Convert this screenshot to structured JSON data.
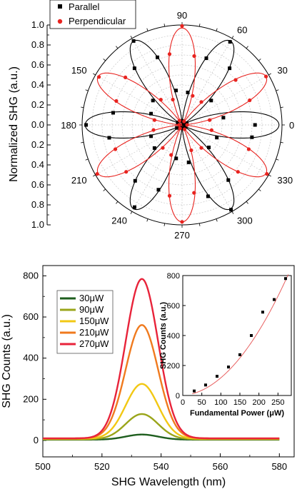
{
  "chart_data": [
    {
      "type": "scatter",
      "subtype": "polar",
      "ylabel": "Normalized SHG (a.u.)",
      "angle_ticks": [
        "0",
        "30",
        "60",
        "90",
        "120",
        "150",
        "180",
        "210",
        "240",
        "270",
        "300",
        "330"
      ],
      "radial_ticks": [
        "0.0",
        "0.2",
        "0.4",
        "0.6",
        "0.8",
        "1.0"
      ],
      "rlim": [
        0,
        1.0
      ],
      "grid": true,
      "legend_position": "top-left",
      "colors": {
        "parallel": "#000000",
        "perpendicular": "#e8231f"
      },
      "series": [
        {
          "name": "Parallel",
          "marker": "square",
          "fit": "cos^2(3θ)",
          "points": [
            [
              0,
              0.73
            ],
            [
              10,
              0.42
            ],
            [
              20,
              0.05
            ],
            [
              30,
              0.02
            ],
            [
              40,
              0.38
            ],
            [
              50,
              0.74
            ],
            [
              60,
              0.96
            ],
            [
              70,
              0.71
            ],
            [
              80,
              0.33
            ],
            [
              90,
              0.04
            ],
            [
              100,
              0.35
            ],
            [
              110,
              0.72
            ],
            [
              120,
              0.97
            ],
            [
              130,
              0.74
            ],
            [
              140,
              0.38
            ],
            [
              150,
              0.05
            ],
            [
              160,
              0.33
            ],
            [
              170,
              0.7
            ],
            [
              180,
              0.96
            ],
            [
              190,
              0.74
            ],
            [
              200,
              0.33
            ],
            [
              210,
              0.06
            ],
            [
              220,
              0.36
            ],
            [
              230,
              0.73
            ],
            [
              240,
              0.95
            ],
            [
              250,
              0.69
            ],
            [
              260,
              0.34
            ],
            [
              270,
              0.03
            ],
            [
              280,
              0.38
            ],
            [
              290,
              0.76
            ],
            [
              300,
              0.98
            ],
            [
              310,
              0.72
            ],
            [
              320,
              0.35
            ],
            [
              330,
              0.04
            ],
            [
              340,
              0.37
            ],
            [
              350,
              0.71
            ]
          ]
        },
        {
          "name": "Perpendicular",
          "marker": "circle",
          "fit": "sin^2(3θ)",
          "points": [
            [
              0,
              0.05
            ],
            [
              10,
              0.28
            ],
            [
              20,
              0.72
            ],
            [
              30,
              0.97
            ],
            [
              40,
              0.7
            ],
            [
              50,
              0.3
            ],
            [
              60,
              0.04
            ],
            [
              70,
              0.31
            ],
            [
              80,
              0.7
            ],
            [
              90,
              0.99
            ],
            [
              100,
              0.72
            ],
            [
              110,
              0.27
            ],
            [
              120,
              0.05
            ],
            [
              130,
              0.33
            ],
            [
              140,
              0.74
            ],
            [
              150,
              0.96
            ],
            [
              160,
              0.7
            ],
            [
              170,
              0.28
            ],
            [
              180,
              0.03
            ],
            [
              190,
              0.29
            ],
            [
              200,
              0.71
            ],
            [
              210,
              0.98
            ],
            [
              220,
              0.73
            ],
            [
              230,
              0.3
            ],
            [
              240,
              0.04
            ],
            [
              250,
              0.32
            ],
            [
              260,
              0.72
            ],
            [
              270,
              0.97
            ],
            [
              280,
              0.69
            ],
            [
              290,
              0.27
            ],
            [
              300,
              0.05
            ],
            [
              310,
              0.3
            ],
            [
              320,
              0.73
            ],
            [
              330,
              0.98
            ],
            [
              340,
              0.71
            ],
            [
              350,
              0.3
            ]
          ]
        }
      ]
    },
    {
      "type": "line",
      "xlabel": "SHG Wavelength (nm)",
      "ylabel": "SHG Counts (a.u.)",
      "xlim": [
        500,
        585
      ],
      "ylim": [
        -80,
        850
      ],
      "xticks": [
        "500",
        "520",
        "540",
        "560",
        "580"
      ],
      "yticks": [
        "0",
        "200",
        "400",
        "600",
        "800"
      ],
      "legend_position": "upper-left",
      "peak_center_nm": 533.5,
      "peak_sigma_nm": 5.5,
      "baseline": 10,
      "series": [
        {
          "name": "30μW",
          "peak": 30,
          "color": "#1e5e1e"
        },
        {
          "name": "90μW",
          "peak": 128,
          "color": "#9aa51a"
        },
        {
          "name": "150μW",
          "peak": 272,
          "color": "#f2c814"
        },
        {
          "name": "210μW",
          "peak": 556,
          "color": "#f07a1e"
        },
        {
          "name": "270μW",
          "peak": 780,
          "color": "#e8233a"
        }
      ]
    },
    {
      "type": "scatter",
      "role": "inset",
      "xlabel": "Fundamental Power (μW)",
      "ylabel": "SHG Counts (a.u.)",
      "xlim": [
        0,
        285
      ],
      "ylim": [
        0,
        800
      ],
      "xticks": [
        "0",
        "50",
        "100",
        "150",
        "200",
        "250"
      ],
      "yticks": [
        "0",
        "200",
        "400",
        "600",
        "800"
      ],
      "fit": "quadratic",
      "fit_color": "#e86060",
      "points": [
        [
          30,
          30
        ],
        [
          60,
          70
        ],
        [
          90,
          128
        ],
        [
          120,
          190
        ],
        [
          150,
          272
        ],
        [
          180,
          400
        ],
        [
          210,
          556
        ],
        [
          240,
          640
        ],
        [
          270,
          780
        ]
      ]
    }
  ]
}
